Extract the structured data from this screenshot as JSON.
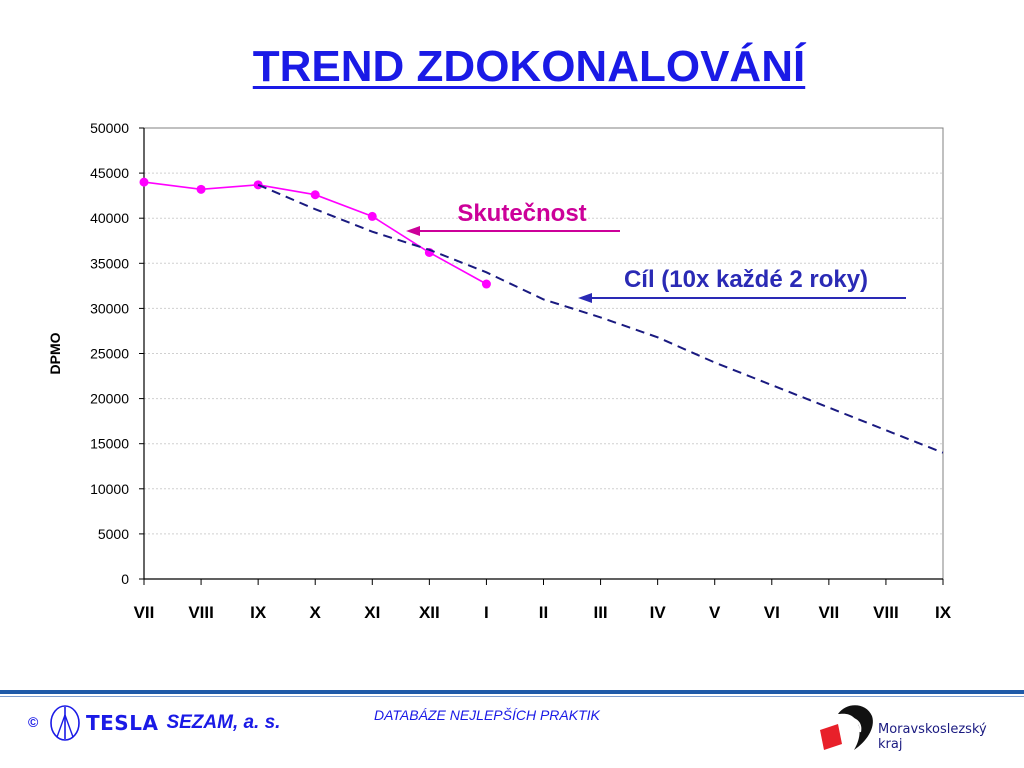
{
  "title": "TREND ZDOKONALOVÁNÍ",
  "chart_data": {
    "type": "line",
    "ylabel": "DPMO",
    "xlabel": "",
    "ylim": [
      0,
      50000
    ],
    "yticks": [
      "0",
      "5000",
      "10000",
      "15000",
      "20000",
      "25000",
      "30000",
      "35000",
      "40000",
      "45000",
      "50000"
    ],
    "categories": [
      "VII",
      "VIII",
      "IX",
      "X",
      "XI",
      "XII",
      "I",
      "II",
      "III",
      "IV",
      "V",
      "VI",
      "VII",
      "VIII",
      "IX"
    ],
    "grid": true,
    "series": [
      {
        "name": "Skutečnost",
        "color": "#ff00ff",
        "style": "solid-markers",
        "values": [
          44000,
          43200,
          43700,
          42600,
          40200,
          36200,
          32700,
          null,
          null,
          null,
          null,
          null,
          null,
          null,
          null
        ]
      },
      {
        "name": "Cíl (10x každé 2 roky)",
        "color": "#1a1a80",
        "style": "dashed",
        "values": [
          null,
          null,
          43700,
          41000,
          38500,
          36500,
          34000,
          31000,
          29000,
          26800,
          24000,
          21500,
          19000,
          16500,
          14000
        ]
      }
    ],
    "annotations": [
      {
        "text": "Skutečnost",
        "color": "#cc0099"
      },
      {
        "text": "Cíl (10x každé 2 roky)",
        "color": "#2a2ab5"
      }
    ]
  },
  "footer": {
    "copyright": "©",
    "company_logo_text": "TESLA",
    "company_suffix": "SEZAM, a. s.",
    "center_text": "DATABÁZE NEJLEPŠÍCH PRAKTIK",
    "region_name": "Moravskoslezský",
    "region_kraj": "kraj",
    "region_logo_color": "#e8202a"
  }
}
